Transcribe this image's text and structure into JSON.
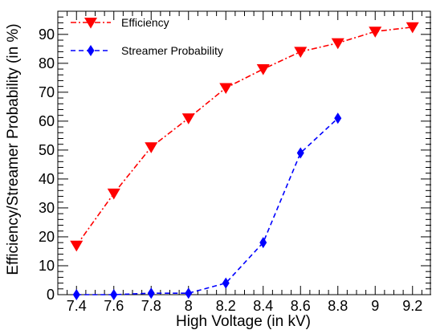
{
  "chart_data": {
    "type": "line",
    "title": "",
    "xlabel": "High Voltage (in kV)",
    "ylabel": "Efficiency/Streamer Probability (in %)",
    "xlim": [
      7.3,
      9.3
    ],
    "ylim": [
      0,
      98
    ],
    "x_ticks": [
      "7.4",
      "7.6",
      "7.8",
      "8",
      "8.2",
      "8.4",
      "8.6",
      "8.8",
      "9",
      "9.2"
    ],
    "x_tick_values": [
      7.4,
      7.6,
      7.8,
      8.0,
      8.2,
      8.4,
      8.6,
      8.8,
      9.0,
      9.2
    ],
    "y_ticks": [
      "0",
      "10",
      "20",
      "30",
      "40",
      "50",
      "60",
      "70",
      "80",
      "90"
    ],
    "y_tick_values": [
      0,
      10,
      20,
      30,
      40,
      50,
      60,
      70,
      80,
      90
    ],
    "grid": false,
    "legend_position": "top-left",
    "series": [
      {
        "name": "Efficiency",
        "color": "#ff0000",
        "marker": "triangle-down",
        "line_style": "dash-dot",
        "x": [
          7.4,
          7.6,
          7.8,
          8.0,
          8.2,
          8.4,
          8.6,
          8.8,
          9.0,
          9.2
        ],
        "y": [
          17,
          35,
          51,
          61,
          71.5,
          78,
          84,
          87,
          91,
          92.5
        ]
      },
      {
        "name": "Streamer Probability",
        "color": "#0000ff",
        "marker": "diamond",
        "line_style": "dashed",
        "x": [
          7.4,
          7.6,
          7.8,
          8.0,
          8.2,
          8.4,
          8.6,
          8.8
        ],
        "y": [
          0,
          0,
          0.5,
          0.5,
          4,
          18,
          49,
          61
        ]
      }
    ]
  }
}
